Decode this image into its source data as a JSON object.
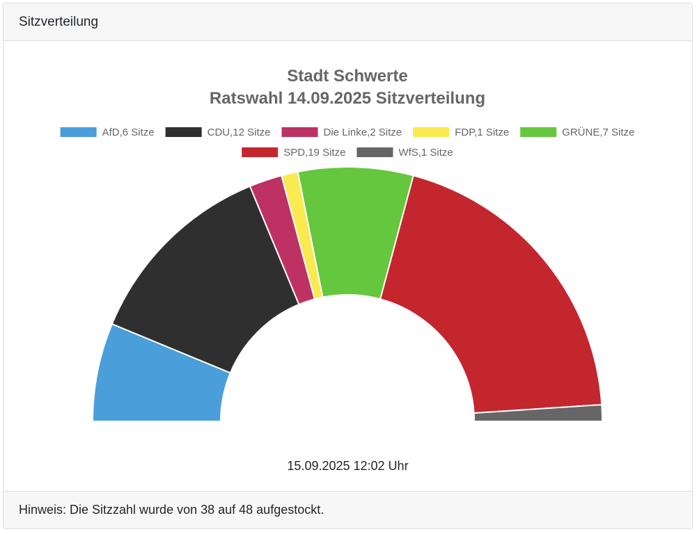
{
  "panel": {
    "header_title": "Sitzverteilung",
    "footer_note": "Hinweis: Die Sitzzahl wurde von 38 auf 48 aufgestockt.",
    "timestamp": "15.09.2025 12:02 Uhr"
  },
  "chart_data": {
    "type": "pie",
    "subtype": "half-donut (parliament)",
    "title": [
      "Stadt Schwerte",
      "Ratswahl 14.09.2025 Sitzverteilung"
    ],
    "legend_position": "top",
    "unit": "Sitze",
    "total_seats": 48,
    "series": [
      {
        "name": "AfD",
        "value": 6,
        "color": "#4a9fdb"
      },
      {
        "name": "CDU",
        "value": 12,
        "color": "#2f2f2f"
      },
      {
        "name": "Die Linke",
        "value": 2,
        "color": "#be3263"
      },
      {
        "name": "FDP",
        "value": 1,
        "color": "#f9ea4f"
      },
      {
        "name": "GRÜNE",
        "value": 7,
        "color": "#65c73d"
      },
      {
        "name": "SPD",
        "value": 19,
        "color": "#c4262e"
      },
      {
        "name": "WfS",
        "value": 1,
        "color": "#666666"
      }
    ]
  }
}
